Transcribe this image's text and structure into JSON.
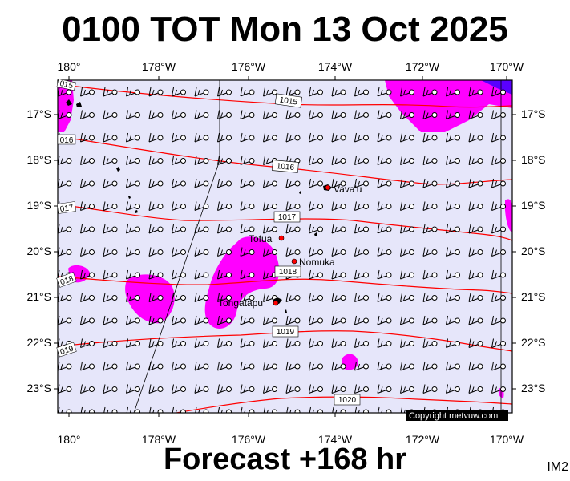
{
  "header": {
    "title": "0100 TOT Mon 13 Oct 2025"
  },
  "footer": {
    "forecast": "Forecast +168 hr",
    "tag": "IM2"
  },
  "copyright": "Copyright metvuw.com",
  "colors": {
    "ocean": "#e6e6fa",
    "precip": "#ff00ff",
    "isobar": "#ff0000",
    "heavy_precip": "#5a00ff"
  },
  "map": {
    "lon_labels": [
      "180°",
      "178°W",
      "176°W",
      "174°W",
      "172°W",
      "170°W"
    ],
    "lat_labels": [
      "17°S",
      "18°S",
      "19°S",
      "20°S",
      "21°S",
      "22°S",
      "23°S"
    ],
    "isobars": [
      "1015",
      "1016",
      "1017",
      "1018",
      "1019",
      "1020"
    ],
    "isobar_edge_labels": [
      "015",
      "016",
      "017",
      "018",
      "019"
    ],
    "places": [
      "Vava'u",
      "Tofua",
      "Nomuka",
      "Tongatapu"
    ]
  }
}
